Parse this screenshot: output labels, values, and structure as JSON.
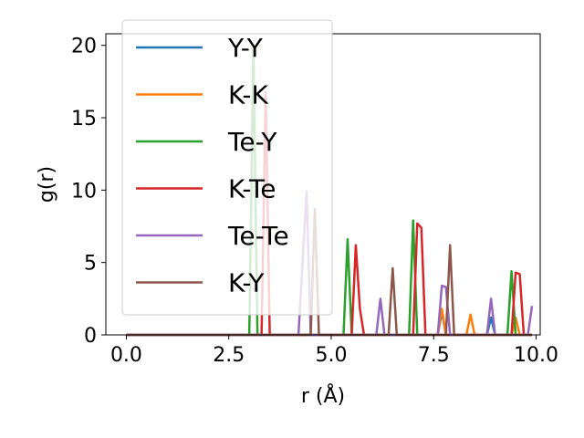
{
  "chart_data": {
    "type": "line",
    "title": "",
    "xlabel": "r (Å)",
    "ylabel": "g(r)",
    "xlim": [
      -0.5,
      10.1
    ],
    "ylim": [
      0,
      20.8
    ],
    "xticks": [
      0.0,
      2.5,
      5.0,
      7.5,
      10.0
    ],
    "xtick_labels": [
      "0.0",
      "2.5",
      "5.0",
      "7.5",
      "10.0"
    ],
    "yticks": [
      0,
      5,
      10,
      15,
      20
    ],
    "ytick_labels": [
      "0",
      "5",
      "10",
      "15",
      "20"
    ],
    "grid": false,
    "legend_position": "upper-left",
    "series": [
      {
        "name": "Y-Y",
        "color": "#1f77b4",
        "points": [
          [
            0,
            0
          ],
          [
            7.6,
            0
          ],
          [
            7.7,
            1.6
          ],
          [
            7.8,
            0
          ],
          [
            8.8,
            0
          ],
          [
            8.9,
            1.2
          ],
          [
            9.0,
            0
          ],
          [
            9.9,
            0
          ]
        ]
      },
      {
        "name": "K-K",
        "color": "#ff7f0e",
        "points": [
          [
            0,
            0
          ],
          [
            7.6,
            0
          ],
          [
            7.7,
            1.8
          ],
          [
            7.8,
            0
          ],
          [
            8.3,
            0
          ],
          [
            8.4,
            1.4
          ],
          [
            8.5,
            0
          ],
          [
            9.4,
            0
          ],
          [
            9.5,
            1.2
          ],
          [
            9.6,
            0
          ],
          [
            9.9,
            0
          ]
        ]
      },
      {
        "name": "Te-Y",
        "color": "#2ca02c",
        "points": [
          [
            0,
            0
          ],
          [
            3.0,
            0
          ],
          [
            3.1,
            19.8
          ],
          [
            3.2,
            0
          ],
          [
            5.3,
            0
          ],
          [
            5.4,
            6.6
          ],
          [
            5.5,
            0
          ],
          [
            6.9,
            0
          ],
          [
            7.0,
            7.9
          ],
          [
            7.1,
            0
          ],
          [
            9.3,
            0
          ],
          [
            9.4,
            4.4
          ],
          [
            9.5,
            0
          ],
          [
            9.9,
            0
          ]
        ]
      },
      {
        "name": "K-Te",
        "color": "#d62728",
        "points": [
          [
            0,
            0
          ],
          [
            3.3,
            0
          ],
          [
            3.4,
            16.8
          ],
          [
            3.5,
            0
          ],
          [
            5.5,
            0
          ],
          [
            5.6,
            6.2
          ],
          [
            5.7,
            1.8
          ],
          [
            5.8,
            0
          ],
          [
            7.0,
            0
          ],
          [
            7.1,
            7.7
          ],
          [
            7.2,
            7.4
          ],
          [
            7.3,
            0
          ],
          [
            9.4,
            0
          ],
          [
            9.5,
            4.3
          ],
          [
            9.6,
            4.2
          ],
          [
            9.7,
            0
          ],
          [
            9.9,
            0
          ]
        ]
      },
      {
        "name": "Te-Te",
        "color": "#9467bd",
        "points": [
          [
            0,
            0
          ],
          [
            4.2,
            0
          ],
          [
            4.3,
            5.0
          ],
          [
            4.4,
            9.9
          ],
          [
            4.5,
            0
          ],
          [
            6.1,
            0
          ],
          [
            6.2,
            2.5
          ],
          [
            6.3,
            0
          ],
          [
            7.6,
            0
          ],
          [
            7.7,
            3.4
          ],
          [
            7.8,
            3.3
          ],
          [
            7.9,
            0
          ],
          [
            8.8,
            0
          ],
          [
            8.9,
            2.5
          ],
          [
            9.0,
            0
          ],
          [
            9.8,
            0
          ],
          [
            9.9,
            2.0
          ]
        ]
      },
      {
        "name": "K-Y",
        "color": "#8c564b",
        "points": [
          [
            0,
            0
          ],
          [
            4.5,
            0
          ],
          [
            4.6,
            8.7
          ],
          [
            4.7,
            0
          ],
          [
            6.4,
            0
          ],
          [
            6.5,
            4.6
          ],
          [
            6.6,
            0
          ],
          [
            7.8,
            0
          ],
          [
            7.9,
            6.2
          ],
          [
            8.0,
            0
          ],
          [
            9.9,
            0
          ]
        ]
      }
    ]
  }
}
